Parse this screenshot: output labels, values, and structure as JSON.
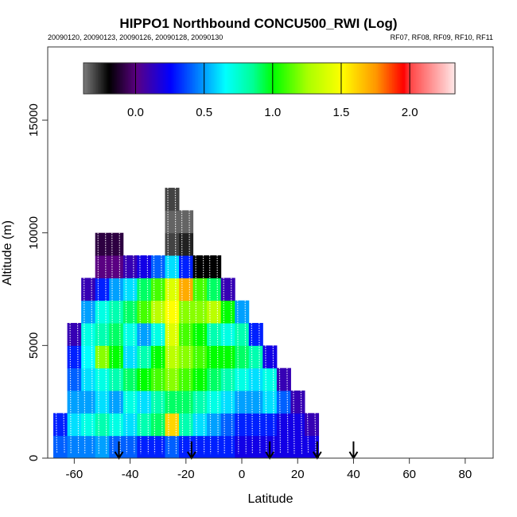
{
  "chart_data": {
    "type": "heatmap",
    "title": "HIPPO1 Northbound CONCU500_RWI (Log)",
    "subtitle_left": "20090120, 20090123, 20090126, 20090128, 20090130",
    "subtitle_right": "RF07, RF08, RF09, RF10, RF11",
    "xlabel": "Latitude",
    "ylabel": "Altitude (m)",
    "xlim": [
      -69.5,
      90
    ],
    "ylim": [
      0,
      18250
    ],
    "xticks": [
      -60,
      -40,
      -20,
      0,
      20,
      40,
      60,
      80
    ],
    "yticks": [
      0,
      5000,
      10000,
      15000
    ],
    "colorbar": {
      "range": [
        -0.38,
        2.33
      ],
      "ticks": [
        "0.0",
        "0.5",
        "1.0",
        "1.5",
        "2.0"
      ],
      "tick_values": [
        0,
        0.5,
        1.0,
        1.5,
        2.0
      ]
    },
    "cell_lat_width": 5,
    "cell_alt_height": 1000,
    "lat_centers": [
      -65,
      -60,
      -55,
      -50,
      -45,
      -40,
      -35,
      -30,
      -25,
      -20,
      -15,
      -10,
      -5,
      0,
      5,
      10,
      15,
      20,
      25
    ],
    "values_by_column_from_ground": [
      [
        0.4,
        0.3
      ],
      [
        0.45,
        0.6,
        0.5,
        0.4,
        0.3,
        0.1
      ],
      [
        0.45,
        0.7,
        0.5,
        0.6,
        0.65,
        0.7,
        0.5,
        0.1
      ],
      [
        0.5,
        0.8,
        0.6,
        0.7,
        1.2,
        0.8,
        0.7,
        0.3,
        0.0,
        -0.1
      ],
      [
        0.4,
        0.7,
        0.5,
        0.8,
        1.0,
        0.9,
        0.8,
        0.5,
        0.0,
        -0.1
      ],
      [
        0.4,
        0.6,
        0.7,
        0.9,
        0.6,
        0.7,
        0.9,
        0.6,
        0.1
      ],
      [
        0.3,
        0.8,
        0.6,
        1.0,
        0.8,
        0.5,
        1.1,
        0.9,
        0.2
      ],
      [
        0.3,
        0.9,
        0.8,
        1.1,
        1.0,
        0.7,
        1.3,
        1.1,
        0.4
      ],
      [
        0.4,
        1.6,
        0.9,
        1.2,
        1.3,
        1.4,
        1.5,
        1.4,
        0.6,
        -0.3,
        -0.35,
        -0.3
      ],
      [
        0.3,
        0.8,
        0.9,
        1.1,
        1.2,
        1.1,
        1.2,
        1.7,
        0.3,
        -0.25,
        -0.35
      ],
      [
        0.3,
        0.6,
        0.8,
        1.0,
        1.1,
        1.0,
        1.2,
        1.1,
        -0.2
      ],
      [
        0.3,
        0.5,
        0.7,
        0.9,
        1.0,
        0.8,
        1.3,
        0.9,
        -0.2
      ],
      [
        0.3,
        0.4,
        0.6,
        0.8,
        1.0,
        0.7,
        1.0,
        0.1
      ],
      [
        0.2,
        0.3,
        0.5,
        0.7,
        0.9,
        0.8,
        0.5
      ],
      [
        0.2,
        0.3,
        0.5,
        0.6,
        0.8,
        0.3
      ],
      [
        0.2,
        0.3,
        0.6,
        0.7,
        0.2
      ],
      [
        0.2,
        0.2,
        0.4,
        0.1
      ],
      [
        0.2,
        0.2,
        0.1
      ],
      [
        0.2,
        0.1
      ]
    ],
    "flight_markers_lat": [
      -44,
      -18,
      10,
      27,
      40
    ]
  }
}
